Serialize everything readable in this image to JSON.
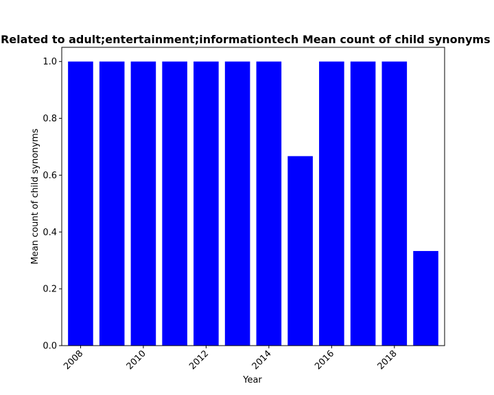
{
  "chart_data": {
    "type": "bar",
    "title": "Related to adult;entertainment;informationtech Mean count of child synonyms in",
    "xlabel": "Year",
    "ylabel": "Mean count of child synonyms",
    "categories": [
      2008,
      2009,
      2010,
      2011,
      2012,
      2013,
      2014,
      2015,
      2016,
      2017,
      2018,
      2019
    ],
    "values": [
      1.0,
      1.0,
      1.0,
      1.0,
      1.0,
      1.0,
      1.0,
      0.667,
      1.0,
      1.0,
      1.0,
      0.333
    ],
    "x_ticks": [
      "2008",
      "2010",
      "2012",
      "2014",
      "2016",
      "2018"
    ],
    "x_tick_values": [
      2008,
      2010,
      2012,
      2014,
      2016,
      2018
    ],
    "y_ticks": [
      "0.0",
      "0.2",
      "0.4",
      "0.6",
      "0.8",
      "1.0"
    ],
    "y_tick_values": [
      0,
      0.2,
      0.4,
      0.6,
      0.8,
      1.0
    ],
    "ylim": [
      0,
      1.05
    ],
    "xlim": [
      2007.4,
      2019.6
    ],
    "bar_color": "#0000ff",
    "grid": false,
    "legend": "none"
  }
}
